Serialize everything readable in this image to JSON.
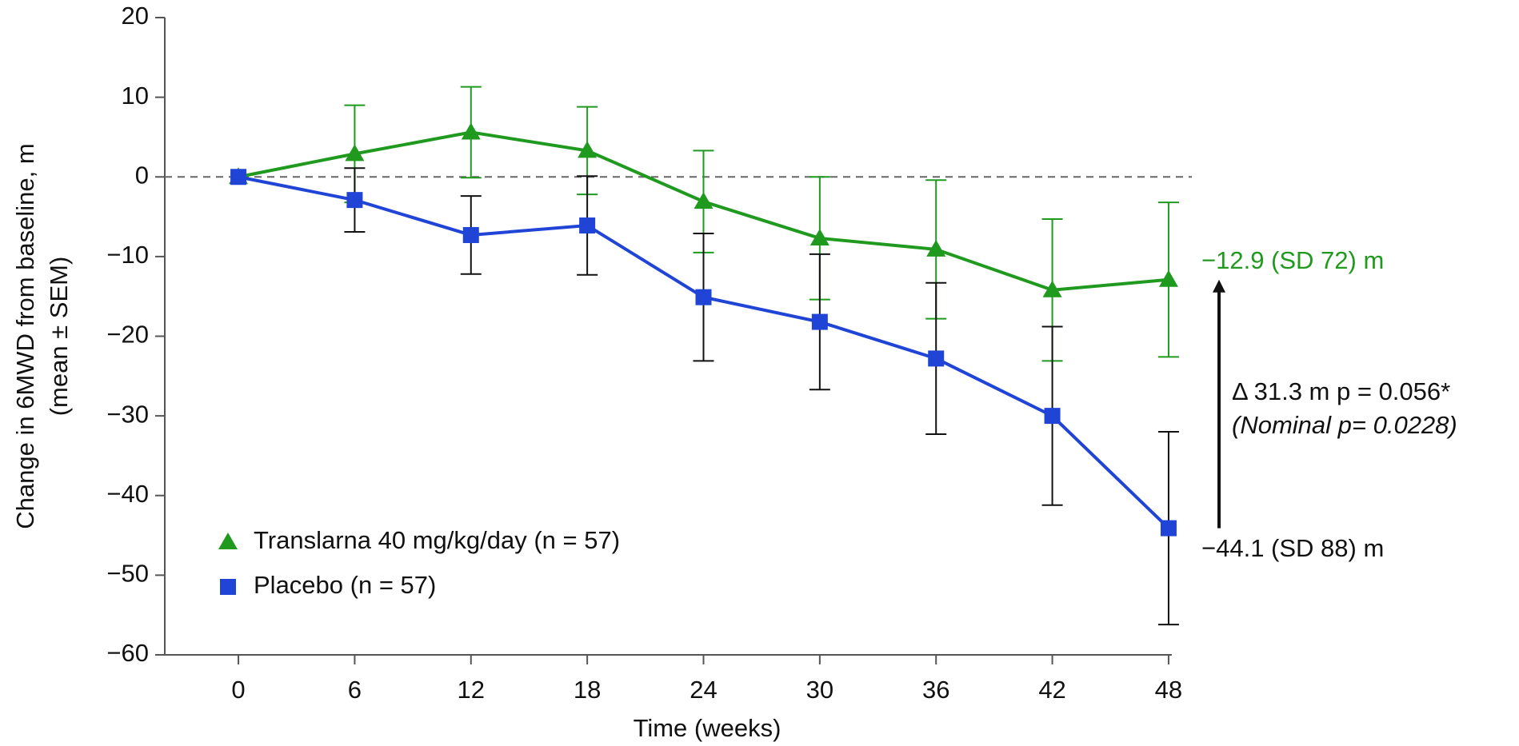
{
  "chart_data": {
    "type": "line",
    "x_label": "Time (weeks)",
    "y_label": [
      "Change in 6MWD from baseline, m",
      "(mean ± SEM)"
    ],
    "x": [
      0,
      6,
      12,
      18,
      24,
      30,
      36,
      42,
      48
    ],
    "xlim": [
      -3.8,
      49.2
    ],
    "xticks": [
      0,
      6,
      12,
      18,
      24,
      30,
      36,
      42,
      48
    ],
    "ylim": [
      -60,
      20
    ],
    "yticks": [
      {
        "value": -60,
        "label": "−60"
      },
      {
        "value": -50,
        "label": "−50"
      },
      {
        "value": -40,
        "label": "−40"
      },
      {
        "value": -30,
        "label": "−30"
      },
      {
        "value": -20,
        "label": "−20"
      },
      {
        "value": -10,
        "label": "−10"
      },
      0,
      10,
      20
    ],
    "reference_line": 0,
    "legend": "lower left",
    "series": [
      {
        "name": "Translarna 40 mg/kg/day (n = 57)",
        "color": "#1f9a1f",
        "marker": "triangle",
        "error_color": "#1f9a1f",
        "values": [
          0,
          2.9,
          5.6,
          3.3,
          -3.1,
          -7.7,
          -9.1,
          -14.2,
          -12.9
        ],
        "errors": [
          null,
          6.1,
          5.7,
          5.5,
          6.4,
          7.7,
          8.7,
          8.9,
          9.7
        ]
      },
      {
        "name": "Placebo (n = 57)",
        "color": "#1f44d6",
        "marker": "square",
        "error_color": "#111111",
        "values": [
          0,
          -2.9,
          -7.3,
          -6.1,
          -15.1,
          -18.2,
          -22.8,
          -30.0,
          -44.1
        ],
        "errors": [
          null,
          4.0,
          4.9,
          6.2,
          8.0,
          8.5,
          9.5,
          11.2,
          12.1
        ]
      }
    ],
    "annotations": [
      "−12.9 (SD 72) m",
      "−44.1 (SD 88) m",
      "Δ 31.3 m  p = 0.056*",
      "(Nominal p= 0.0228)"
    ]
  }
}
